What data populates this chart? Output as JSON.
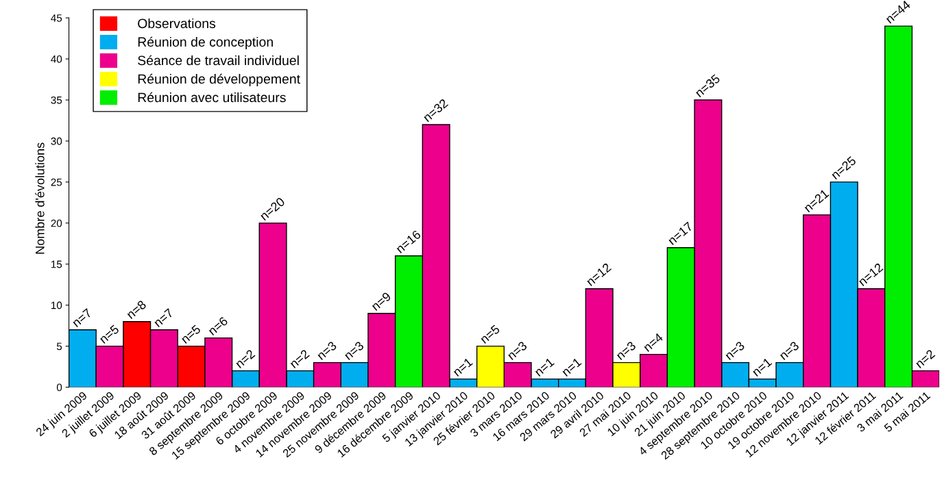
{
  "chart_data": {
    "type": "bar",
    "ylabel": "Nombre d'évolutions",
    "categories": [
      "24 juin 2009",
      "2 juillet 2009",
      "6 juillet 2009",
      "18 août 2009",
      "31 août 2009",
      "8 septembre 2009",
      "15 septembre 2009",
      "6 octobre 2009",
      "4 novembre 2009",
      "14 novembre 2009",
      "25 novembre 2009",
      "9 décembre 2009",
      "16 décembre 2009",
      "5 janvier 2010",
      "13 janvier 2010",
      "25 février 2010",
      "3 mars 2010",
      "16 mars 2010",
      "29 mars 2010",
      "29 avril 2010",
      "27 mai 2010",
      "10 juin 2010",
      "21 juin 2010",
      "4 septembre 2010",
      "28 septembre 2010",
      "10 octobre 2010",
      "19 octobre 2010",
      "12 novembre 2010",
      "12 janvier 2011",
      "12 février 2011",
      "3 mai 2011",
      "5 mai 2011"
    ],
    "series": [
      {
        "name": "Observations",
        "color": "#ff0000",
        "values": [
          null,
          null,
          8,
          null,
          5,
          null,
          null,
          null,
          null,
          null,
          null,
          null,
          null,
          null,
          null,
          null,
          null,
          null,
          null,
          null,
          null,
          null,
          null,
          null,
          null,
          null,
          null,
          null,
          null,
          null,
          null,
          null
        ],
        "value_labels": [
          null,
          null,
          "n=8",
          null,
          "n=5",
          null,
          null,
          null,
          null,
          null,
          null,
          null,
          null,
          null,
          null,
          null,
          null,
          null,
          null,
          null,
          null,
          null,
          null,
          null,
          null,
          null,
          null,
          null,
          null,
          null,
          null,
          null
        ]
      },
      {
        "name": "Réunion de conception",
        "color": "#00aeef",
        "values": [
          7,
          null,
          null,
          null,
          null,
          null,
          2,
          null,
          2,
          null,
          3,
          null,
          null,
          null,
          1,
          null,
          null,
          1,
          1,
          null,
          null,
          null,
          null,
          null,
          3,
          1,
          3,
          null,
          25,
          null,
          null,
          null
        ],
        "value_labels": [
          "n=7",
          null,
          null,
          null,
          null,
          null,
          "n=2",
          null,
          "n=2",
          null,
          "n=3",
          null,
          null,
          null,
          "n=1",
          null,
          null,
          "n=1",
          "n=1",
          null,
          null,
          null,
          null,
          null,
          "n=3",
          "n=1",
          "n=3",
          null,
          "n=25",
          null,
          null,
          null
        ]
      },
      {
        "name": "Séance de travail individuel",
        "color": "#ec008c",
        "values": [
          null,
          5,
          null,
          7,
          null,
          6,
          null,
          20,
          null,
          3,
          null,
          9,
          null,
          32,
          null,
          null,
          3,
          null,
          null,
          12,
          null,
          4,
          null,
          35,
          null,
          null,
          null,
          21,
          null,
          12,
          null,
          2
        ],
        "value_labels": [
          null,
          "n=5",
          null,
          "n=7",
          null,
          "n=6",
          null,
          "n=20",
          null,
          "n=3",
          null,
          "n=9",
          null,
          "n=32",
          null,
          null,
          "n=3",
          null,
          null,
          "n=12",
          null,
          "n=4",
          null,
          "n=35",
          null,
          null,
          null,
          "n=21",
          null,
          "n=12",
          null,
          "n=2"
        ]
      },
      {
        "name": "Réunion de développement",
        "color": "#ffff00",
        "values": [
          null,
          null,
          null,
          null,
          null,
          null,
          null,
          null,
          null,
          null,
          null,
          null,
          null,
          null,
          null,
          5,
          null,
          null,
          null,
          null,
          3,
          null,
          null,
          null,
          null,
          null,
          null,
          null,
          null,
          null,
          null,
          null
        ],
        "value_labels": [
          null,
          null,
          null,
          null,
          null,
          null,
          null,
          null,
          null,
          null,
          null,
          null,
          null,
          null,
          null,
          "n=5",
          null,
          null,
          null,
          null,
          "n=3",
          null,
          null,
          null,
          null,
          null,
          null,
          null,
          null,
          null,
          null,
          null
        ]
      },
      {
        "name": "Réunion avec utilisateurs",
        "color": "#00ee00",
        "values": [
          null,
          null,
          null,
          null,
          null,
          null,
          null,
          null,
          null,
          null,
          null,
          null,
          16,
          null,
          null,
          null,
          null,
          null,
          null,
          null,
          null,
          null,
          17,
          null,
          null,
          null,
          null,
          null,
          null,
          null,
          44,
          null
        ],
        "value_labels": [
          null,
          null,
          null,
          null,
          null,
          null,
          null,
          null,
          null,
          null,
          null,
          null,
          "n=16",
          null,
          null,
          null,
          null,
          null,
          null,
          null,
          null,
          null,
          "n=17",
          null,
          null,
          null,
          null,
          null,
          null,
          null,
          "n=44",
          null
        ]
      }
    ],
    "ylim": [
      0,
      46
    ],
    "yticks": [
      0,
      5,
      10,
      15,
      20,
      25,
      30,
      35,
      40,
      45
    ],
    "grid": false,
    "legend": "top left"
  }
}
